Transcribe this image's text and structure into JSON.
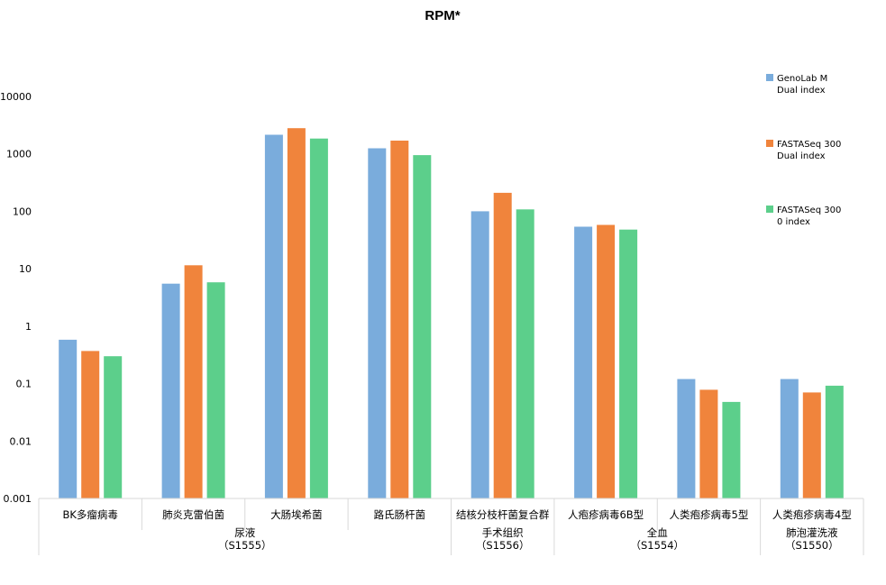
{
  "chart_data": {
    "type": "bar",
    "title": "RPM*",
    "yscale": "log",
    "ylim": [
      0.001,
      10000
    ],
    "yticks": [
      "0.001",
      "0.01",
      "0.1",
      "1",
      "10",
      "100",
      "1000",
      "10000"
    ],
    "categories": [
      "BK多瘤病毒",
      "肺炎克雷伯菌",
      "大肠埃希菌",
      "路氏肠杆菌",
      "结核分枝杆菌复合群",
      "人疱疹病毒6B型",
      "人类疱疹病毒5型",
      "人类疱疹病毒4型"
    ],
    "groups": [
      {
        "name": "尿液",
        "code": "（S1555）",
        "span": [
          0,
          3
        ]
      },
      {
        "name": "手术组织",
        "code": "（S1556）",
        "span": [
          4,
          4
        ]
      },
      {
        "name": "全血",
        "code": "（S1554）",
        "span": [
          5,
          6
        ]
      },
      {
        "name": "肺泡灌洗液",
        "code": "（S1550）",
        "span": [
          7,
          7
        ]
      }
    ],
    "series": [
      {
        "name": "GenoLab M Dual index",
        "legend_lines": [
          "GenoLab M",
          "Dual index"
        ],
        "color": "#7aacdc",
        "values": [
          0.58,
          5.5,
          2150,
          1250,
          100,
          54,
          0.12,
          0.12
        ]
      },
      {
        "name": "FASTASeq 300 Dual index",
        "legend_lines": [
          "FASTASeq 300",
          "Dual index"
        ],
        "color": "#f0843c",
        "values": [
          0.37,
          11.5,
          2800,
          1700,
          210,
          58,
          0.078,
          0.07
        ]
      },
      {
        "name": "FASTASeq 300 0 index",
        "legend_lines": [
          "FASTASeq 300",
          "0 index"
        ],
        "color": "#5ccf8b",
        "values": [
          0.3,
          5.8,
          1850,
          950,
          108,
          48,
          0.048,
          0.092
        ]
      }
    ],
    "grid": false,
    "legend_position": "right"
  }
}
